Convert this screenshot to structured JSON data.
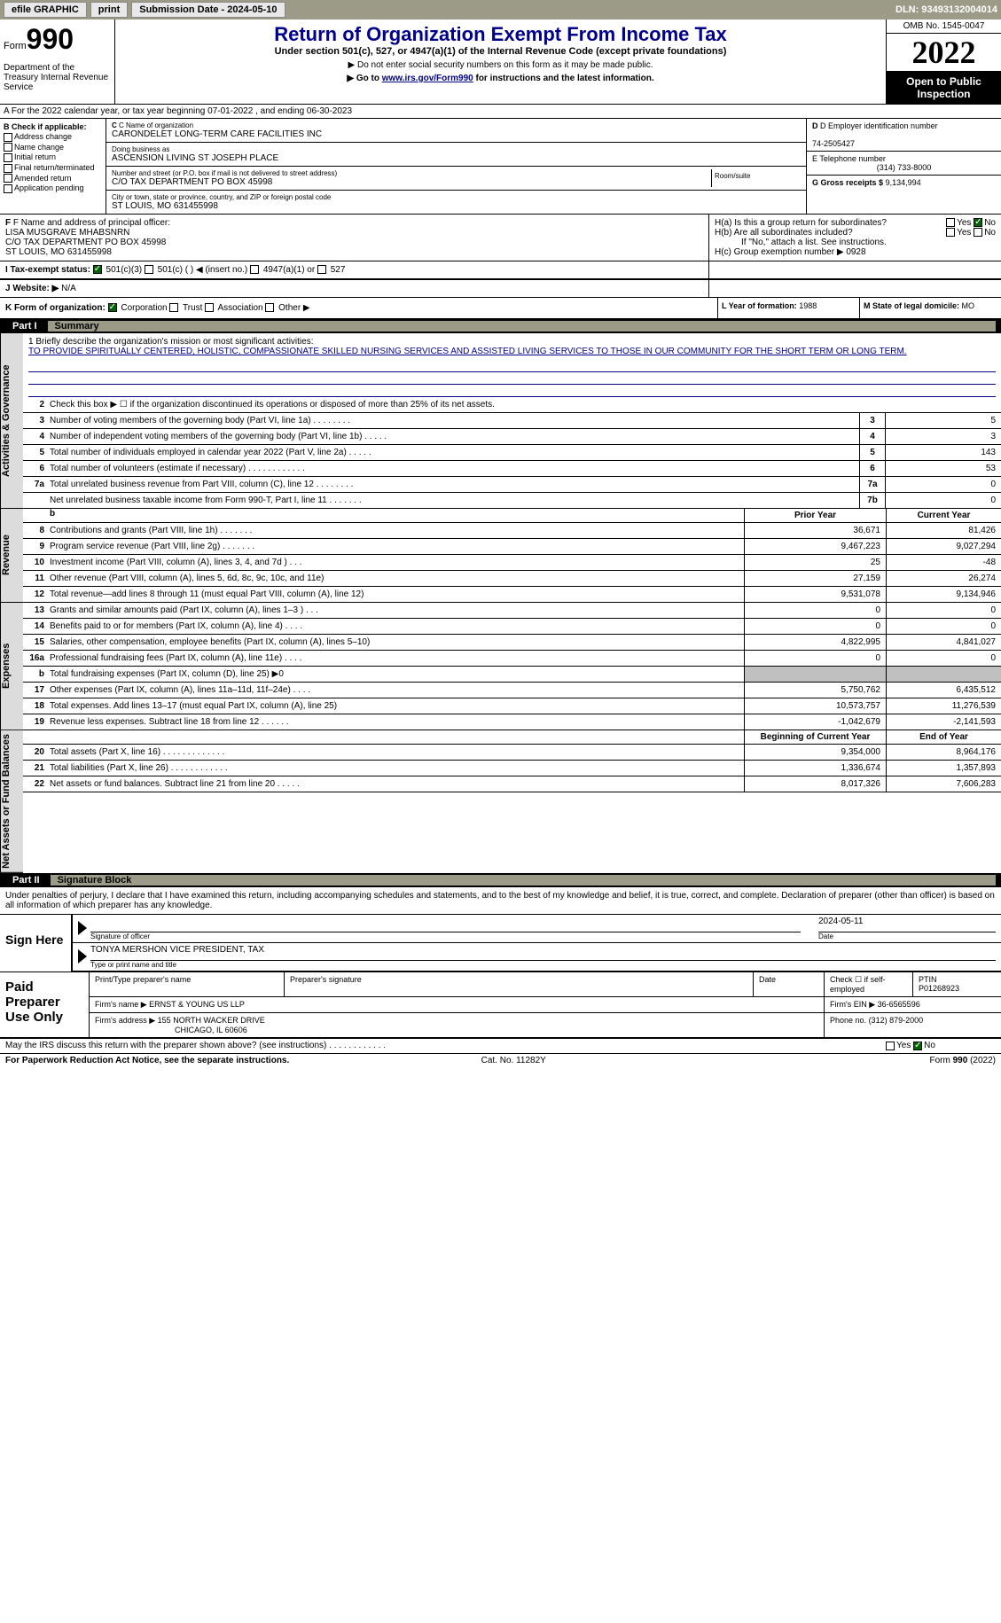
{
  "topbar": {
    "efile": "efile GRAPHIC",
    "print": "print",
    "submission": "Submission Date - 2024-05-10",
    "dln": "DLN: 93493132004014"
  },
  "header": {
    "form": "Form",
    "formnum": "990",
    "dept": "Department of the Treasury Internal Revenue Service",
    "title": "Return of Organization Exempt From Income Tax",
    "sub1": "Under section 501(c), 527, or 4947(a)(1) of the Internal Revenue Code (except private foundations)",
    "sub2": "▶ Do not enter social security numbers on this form as it may be made public.",
    "sub3_pre": "▶ Go to ",
    "sub3_link": "www.irs.gov/Form990",
    "sub3_post": " for instructions and the latest information.",
    "omb": "OMB No. 1545-0047",
    "year": "2022",
    "open": "Open to Public Inspection"
  },
  "row_a": "A For the 2022 calendar year, or tax year beginning 07-01-2022    , and ending 06-30-2023",
  "col_b": {
    "hdr": "B Check if applicable:",
    "items": [
      "Address change",
      "Name change",
      "Initial return",
      "Final return/terminated",
      "Amended return",
      "Application pending"
    ]
  },
  "col_c": {
    "name_lbl": "C Name of organization",
    "name": "CARONDELET LONG-TERM CARE FACILITIES INC",
    "dba_lbl": "Doing business as",
    "dba": "ASCENSION LIVING ST JOSEPH PLACE",
    "addr_lbl": "Number and street (or P.O. box if mail is not delivered to street address)",
    "addr": "C/O TAX DEPARTMENT PO BOX 45998",
    "room_lbl": "Room/suite",
    "city_lbl": "City or town, state or province, country, and ZIP or foreign postal code",
    "city": "ST LOUIS, MO  631455998"
  },
  "col_d": {
    "ein_lbl": "D Employer identification number",
    "ein": "74-2505427",
    "tel_lbl": "E Telephone number",
    "tel": "(314) 733-8000",
    "gross_lbl": "G Gross receipts $",
    "gross": "9,134,994"
  },
  "row_f": {
    "lbl": "F Name and address of principal officer:",
    "name": "LISA MUSGRAVE MHABSNRN",
    "addr1": "C/O TAX DEPARTMENT PO BOX 45998",
    "addr2": "ST LOUIS, MO  631455998"
  },
  "row_h": {
    "ha": "H(a)  Is this a group return for subordinates?",
    "hb": "H(b)  Are all subordinates included?",
    "hb_note": "If \"No,\" attach a list. See instructions.",
    "hc": "H(c)  Group exemption number ▶",
    "hc_val": "0928"
  },
  "row_i": {
    "lbl": "I  Tax-exempt status:",
    "o1": "501(c)(3)",
    "o2": "501(c) (  ) ◀ (insert no.)",
    "o3": "4947(a)(1) or",
    "o4": "527"
  },
  "row_j": {
    "lbl": "J  Website: ▶",
    "val": "N/A"
  },
  "row_k": {
    "lbl": "K Form of organization:",
    "o1": "Corporation",
    "o2": "Trust",
    "o3": "Association",
    "o4": "Other ▶"
  },
  "row_l": {
    "lbl": "L Year of formation:",
    "val": "1988"
  },
  "row_m": {
    "lbl": "M State of legal domicile:",
    "val": "MO"
  },
  "part1": {
    "num": "Part I",
    "title": "Summary"
  },
  "vtabs": {
    "ag": "Activities & Governance",
    "rev": "Revenue",
    "exp": "Expenses",
    "na": "Net Assets or Fund Balances"
  },
  "mission": {
    "lbl": "1   Briefly describe the organization's mission or most significant activities:",
    "text": "TO PROVIDE SPIRITUALLY CENTERED, HOLISTIC, COMPASSIONATE SKILLED NURSING SERVICES AND ASSISTED LIVING SERVICES TO THOSE IN OUR COMMUNITY FOR THE SHORT TERM OR LONG TERM."
  },
  "line2": "Check this box ▶ ☐ if the organization discontinued its operations or disposed of more than 25% of its net assets.",
  "lines_ag": [
    {
      "n": "3",
      "d": "Number of voting members of the governing body (Part VI, line 1a)   .    .    .    .    .    .    .    .",
      "bn": "3",
      "v": "5"
    },
    {
      "n": "4",
      "d": "Number of independent voting members of the governing body (Part VI, line 1b)  .    .    .    .    .",
      "bn": "4",
      "v": "3"
    },
    {
      "n": "5",
      "d": "Total number of individuals employed in calendar year 2022 (Part V, line 2a)   .    .    .    .    .",
      "bn": "5",
      "v": "143"
    },
    {
      "n": "6",
      "d": "Total number of volunteers (estimate if necessary)    .    .    .    .    .    .    .    .    .    .    .    .",
      "bn": "6",
      "v": "53"
    },
    {
      "n": "7a",
      "d": "Total unrelated business revenue from Part VIII, column (C), line 12   .    .    .    .    .    .    .    .",
      "bn": "7a",
      "v": "0"
    },
    {
      "n": "",
      "d": "Net unrelated business taxable income from Form 990-T, Part I, line 11  .    .    .    .    .    .    .",
      "bn": "7b",
      "v": "0"
    }
  ],
  "hdr_py": "Prior Year",
  "hdr_cy": "Current Year",
  "lines_rev": [
    {
      "n": "8",
      "d": "Contributions and grants (Part VIII, line 1h)   .    .    .    .    .    .    .",
      "py": "36,671",
      "cy": "81,426"
    },
    {
      "n": "9",
      "d": "Program service revenue (Part VIII, line 2g)   .    .    .    .    .    .    .",
      "py": "9,467,223",
      "cy": "9,027,294"
    },
    {
      "n": "10",
      "d": "Investment income (Part VIII, column (A), lines 3, 4, and 7d )   .    .    .",
      "py": "25",
      "cy": "-48"
    },
    {
      "n": "11",
      "d": "Other revenue (Part VIII, column (A), lines 5, 6d, 8c, 9c, 10c, and 11e)",
      "py": "27,159",
      "cy": "26,274"
    },
    {
      "n": "12",
      "d": "Total revenue—add lines 8 through 11 (must equal Part VIII, column (A), line 12)",
      "py": "9,531,078",
      "cy": "9,134,946"
    }
  ],
  "lines_exp": [
    {
      "n": "13",
      "d": "Grants and similar amounts paid (Part IX, column (A), lines 1–3 )  .    .    .",
      "py": "0",
      "cy": "0"
    },
    {
      "n": "14",
      "d": "Benefits paid to or for members (Part IX, column (A), line 4)  .    .    .    .",
      "py": "0",
      "cy": "0"
    },
    {
      "n": "15",
      "d": "Salaries, other compensation, employee benefits (Part IX, column (A), lines 5–10)",
      "py": "4,822,995",
      "cy": "4,841,027"
    },
    {
      "n": "16a",
      "d": "Professional fundraising fees (Part IX, column (A), line 11e)  .    .    .    .",
      "py": "0",
      "cy": "0"
    },
    {
      "n": "b",
      "d": "Total fundraising expenses (Part IX, column (D), line 25) ▶0",
      "py": "",
      "cy": "",
      "grey": true
    },
    {
      "n": "17",
      "d": "Other expenses (Part IX, column (A), lines 11a–11d, 11f–24e)  .    .    .    .",
      "py": "5,750,762",
      "cy": "6,435,512"
    },
    {
      "n": "18",
      "d": "Total expenses. Add lines 13–17 (must equal Part IX, column (A), line 25)",
      "py": "10,573,757",
      "cy": "11,276,539"
    },
    {
      "n": "19",
      "d": "Revenue less expenses. Subtract line 18 from line 12  .    .    .    .    .    .",
      "py": "-1,042,679",
      "cy": "-2,141,593"
    }
  ],
  "hdr_bcy": "Beginning of Current Year",
  "hdr_eoy": "End of Year",
  "lines_na": [
    {
      "n": "20",
      "d": "Total assets (Part X, line 16)  .    .    .    .    .    .    .    .    .    .    .    .    .",
      "py": "9,354,000",
      "cy": "8,964,176"
    },
    {
      "n": "21",
      "d": "Total liabilities (Part X, line 26)  .    .    .    .    .    .    .    .    .    .    .    .",
      "py": "1,336,674",
      "cy": "1,357,893"
    },
    {
      "n": "22",
      "d": "Net assets or fund balances. Subtract line 21 from line 20  .    .    .    .    .",
      "py": "8,017,326",
      "cy": "7,606,283"
    }
  ],
  "part2": {
    "num": "Part II",
    "title": "Signature Block"
  },
  "sig_decl": "Under penalties of perjury, I declare that I have examined this return, including accompanying schedules and statements, and to the best of my knowledge and belief, it is true, correct, and complete. Declaration of preparer (other than officer) is based on all information of which preparer has any knowledge.",
  "sign": {
    "lbl": "Sign Here",
    "sig_lbl": "Signature of officer",
    "date": "2024-05-11",
    "date_lbl": "Date",
    "name": "TONYA MERSHON  VICE PRESIDENT, TAX",
    "name_lbl": "Type or print name and title"
  },
  "paid": {
    "lbl": "Paid Preparer Use Only",
    "print_lbl": "Print/Type preparer's name",
    "sig_lbl": "Preparer's signature",
    "date_lbl": "Date",
    "check_lbl": "Check ☐ if self-employed",
    "ptin_lbl": "PTIN",
    "ptin": "P01268923",
    "firm_lbl": "Firm's name    ▶",
    "firm": "ERNST & YOUNG US LLP",
    "ein_lbl": "Firm's EIN ▶",
    "ein": "36-6565596",
    "addr_lbl": "Firm's address ▶",
    "addr1": "155 NORTH WACKER DRIVE",
    "addr2": "CHICAGO, IL  60606",
    "phone_lbl": "Phone no.",
    "phone": "(312) 879-2000"
  },
  "discuss": "May the IRS discuss this return with the preparer shown above? (see instructions)   .    .    .    .    .    .    .    .    .    .    .    .",
  "footer": {
    "left": "For Paperwork Reduction Act Notice, see the separate instructions.",
    "mid": "Cat. No. 11282Y",
    "right": "Form 990 (2022)"
  }
}
